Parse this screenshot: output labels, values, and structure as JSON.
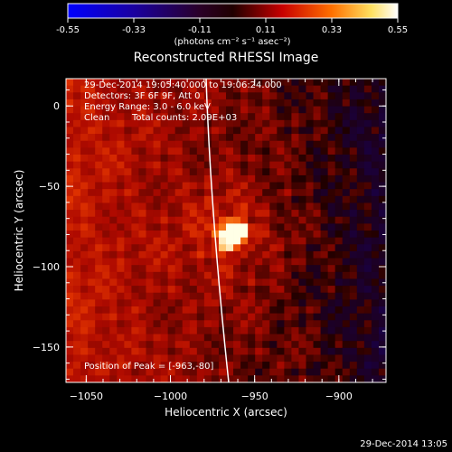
{
  "colorbar": {
    "ticks": [
      -0.55,
      -0.33,
      -0.11,
      0.11,
      0.33,
      0.55
    ],
    "tick_labels": [
      "-0.55",
      "-0.33",
      "-0.11",
      "0.11",
      "0.33",
      "0.55"
    ],
    "units_label": "(photons cm⁻² s⁻¹ asec⁻²)"
  },
  "chart_data": {
    "type": "heatmap",
    "title": "Reconstructed RHESSI Image",
    "xlabel": "Heliocentric X (arcsec)",
    "ylabel": "Heliocentric Y (arcsec)",
    "xlim": [
      -1062,
      -872
    ],
    "ylim": [
      -172,
      17
    ],
    "x_ticks": [
      -1050,
      -1000,
      -950,
      -900
    ],
    "x_tick_labels": [
      "−1050",
      "−1000",
      "−950",
      "−900"
    ],
    "y_ticks": [
      0,
      -50,
      -100,
      -150
    ],
    "y_tick_labels": [
      "0",
      "−50",
      "−100",
      "−150"
    ],
    "zlim": [
      -0.55,
      0.55
    ],
    "peak": {
      "x": -963,
      "y": -80
    },
    "annotations": [
      "29-Dec-2014 19:05:40.000 to 19:06:24.000",
      "Detectors: 3F 6F 9F, Att 0",
      "Energy Range: 3.0 - 6.0 keV",
      "Clean",
      "Total counts: 2.09E+03"
    ],
    "peak_label": "Position of Peak = [-963,-80]"
  },
  "footer": {
    "timestamp": "29-Dec-2014 13:05"
  }
}
